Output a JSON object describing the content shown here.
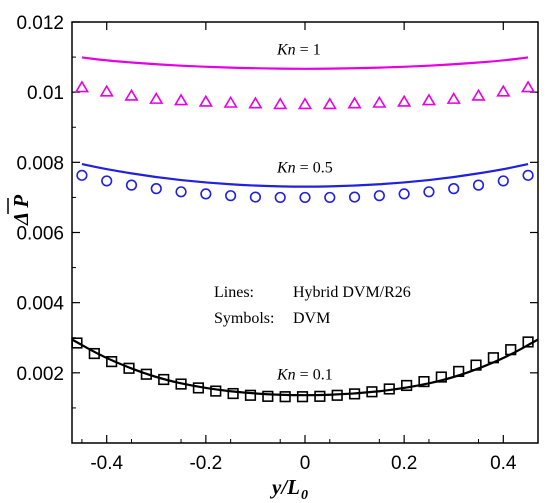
{
  "chart_data": {
    "type": "scatter",
    "xlabel": "y/L",
    "xlabel_sub": "0",
    "ylabel": "Δ P",
    "xlim": [
      -0.47,
      0.47
    ],
    "ylim": [
      0.0,
      0.012
    ],
    "xticks": [
      -0.4,
      -0.2,
      0,
      0.2,
      0.4
    ],
    "xtick_labels": [
      "-0.4",
      "-0.2",
      "0",
      "0.2",
      "0.4"
    ],
    "yticks": [
      0.002,
      0.004,
      0.006,
      0.008,
      0.01,
      0.012
    ],
    "ytick_labels": [
      "0.002",
      "0.004",
      "0.006",
      "0.008",
      "0.01",
      "0.012"
    ],
    "annotations": [
      {
        "italic": "Kn",
        "text": " = 1",
        "x": 0.0,
        "y": 0.01125
      },
      {
        "italic": "Kn",
        "text": " = 0.5",
        "x": 0.0,
        "y": 0.00788
      },
      {
        "italic": "Kn",
        "text": " = 0.1",
        "x": 0.0,
        "y": 0.00198
      }
    ],
    "legend": {
      "line1_key": "Lines:",
      "line1_value": "Hybrid DVM/R26",
      "line2_key": "Symbols:",
      "line2_value": "DVM"
    },
    "series": [
      {
        "kind": "line",
        "color": "#e600e6",
        "x": [
          -0.45,
          -0.4,
          -0.3,
          -0.2,
          -0.1,
          0,
          0.1,
          0.2,
          0.3,
          0.4,
          0.45
        ],
        "y": [
          0.01099,
          0.0109,
          0.01079,
          0.01072,
          0.01068,
          0.01066,
          0.01068,
          0.01072,
          0.01079,
          0.0109,
          0.01099
        ]
      },
      {
        "kind": "marker",
        "marker": "triangle",
        "color": "#e600e6",
        "x": [
          -0.45,
          -0.4,
          -0.35,
          -0.3,
          -0.25,
          -0.2,
          -0.15,
          -0.1,
          -0.05,
          0,
          0.05,
          0.1,
          0.15,
          0.2,
          0.25,
          0.3,
          0.35,
          0.4,
          0.45
        ],
        "y": [
          0.01012,
          0.01,
          0.00988,
          0.00979,
          0.00975,
          0.00971,
          0.00968,
          0.00966,
          0.00964,
          0.00964,
          0.00964,
          0.00966,
          0.00968,
          0.00971,
          0.00975,
          0.00979,
          0.00988,
          0.01,
          0.01012
        ]
      },
      {
        "kind": "line",
        "color": "#2020e0",
        "x": [
          -0.45,
          -0.4,
          -0.3,
          -0.2,
          -0.1,
          0,
          0.1,
          0.2,
          0.3,
          0.4,
          0.45
        ],
        "y": [
          0.00795,
          0.0078,
          0.00757,
          0.00742,
          0.00733,
          0.0073,
          0.00733,
          0.00742,
          0.00757,
          0.0078,
          0.00795
        ]
      },
      {
        "kind": "marker",
        "marker": "circle",
        "color": "#2020e0",
        "x": [
          -0.45,
          -0.4,
          -0.35,
          -0.3,
          -0.25,
          -0.2,
          -0.15,
          -0.1,
          -0.05,
          0,
          0.05,
          0.1,
          0.15,
          0.2,
          0.25,
          0.3,
          0.35,
          0.4,
          0.45
        ],
        "y": [
          0.00763,
          0.00747,
          0.00735,
          0.00725,
          0.00716,
          0.0071,
          0.00705,
          0.00701,
          0.007,
          0.007,
          0.007,
          0.00701,
          0.00705,
          0.0071,
          0.00716,
          0.00725,
          0.00735,
          0.00747,
          0.00763
        ]
      },
      {
        "kind": "line",
        "color": "#000000",
        "x": [
          -0.47,
          -0.4,
          -0.3,
          -0.2,
          -0.1,
          0,
          0.1,
          0.2,
          0.3,
          0.4,
          0.47
        ],
        "y": [
          0.00295,
          0.0024,
          0.00185,
          0.00155,
          0.0014,
          0.00135,
          0.0014,
          0.00155,
          0.00185,
          0.0024,
          0.00295
        ]
      },
      {
        "kind": "marker",
        "marker": "square",
        "color": "#000000",
        "x": [
          -0.46,
          -0.425,
          -0.39,
          -0.355,
          -0.32,
          -0.285,
          -0.25,
          -0.215,
          -0.18,
          -0.145,
          -0.11,
          -0.075,
          -0.04,
          -0.005,
          0.03,
          0.065,
          0.1,
          0.135,
          0.17,
          0.205,
          0.24,
          0.275,
          0.31,
          0.345,
          0.38,
          0.415,
          0.45
        ],
        "y": [
          0.00285,
          0.00255,
          0.00232,
          0.00213,
          0.00196,
          0.00181,
          0.00168,
          0.00157,
          0.00148,
          0.00141,
          0.00136,
          0.00133,
          0.00132,
          0.00132,
          0.00133,
          0.00136,
          0.0014,
          0.00146,
          0.00154,
          0.00164,
          0.00175,
          0.00188,
          0.00204,
          0.00222,
          0.00243,
          0.00266,
          0.00288
        ]
      }
    ]
  }
}
